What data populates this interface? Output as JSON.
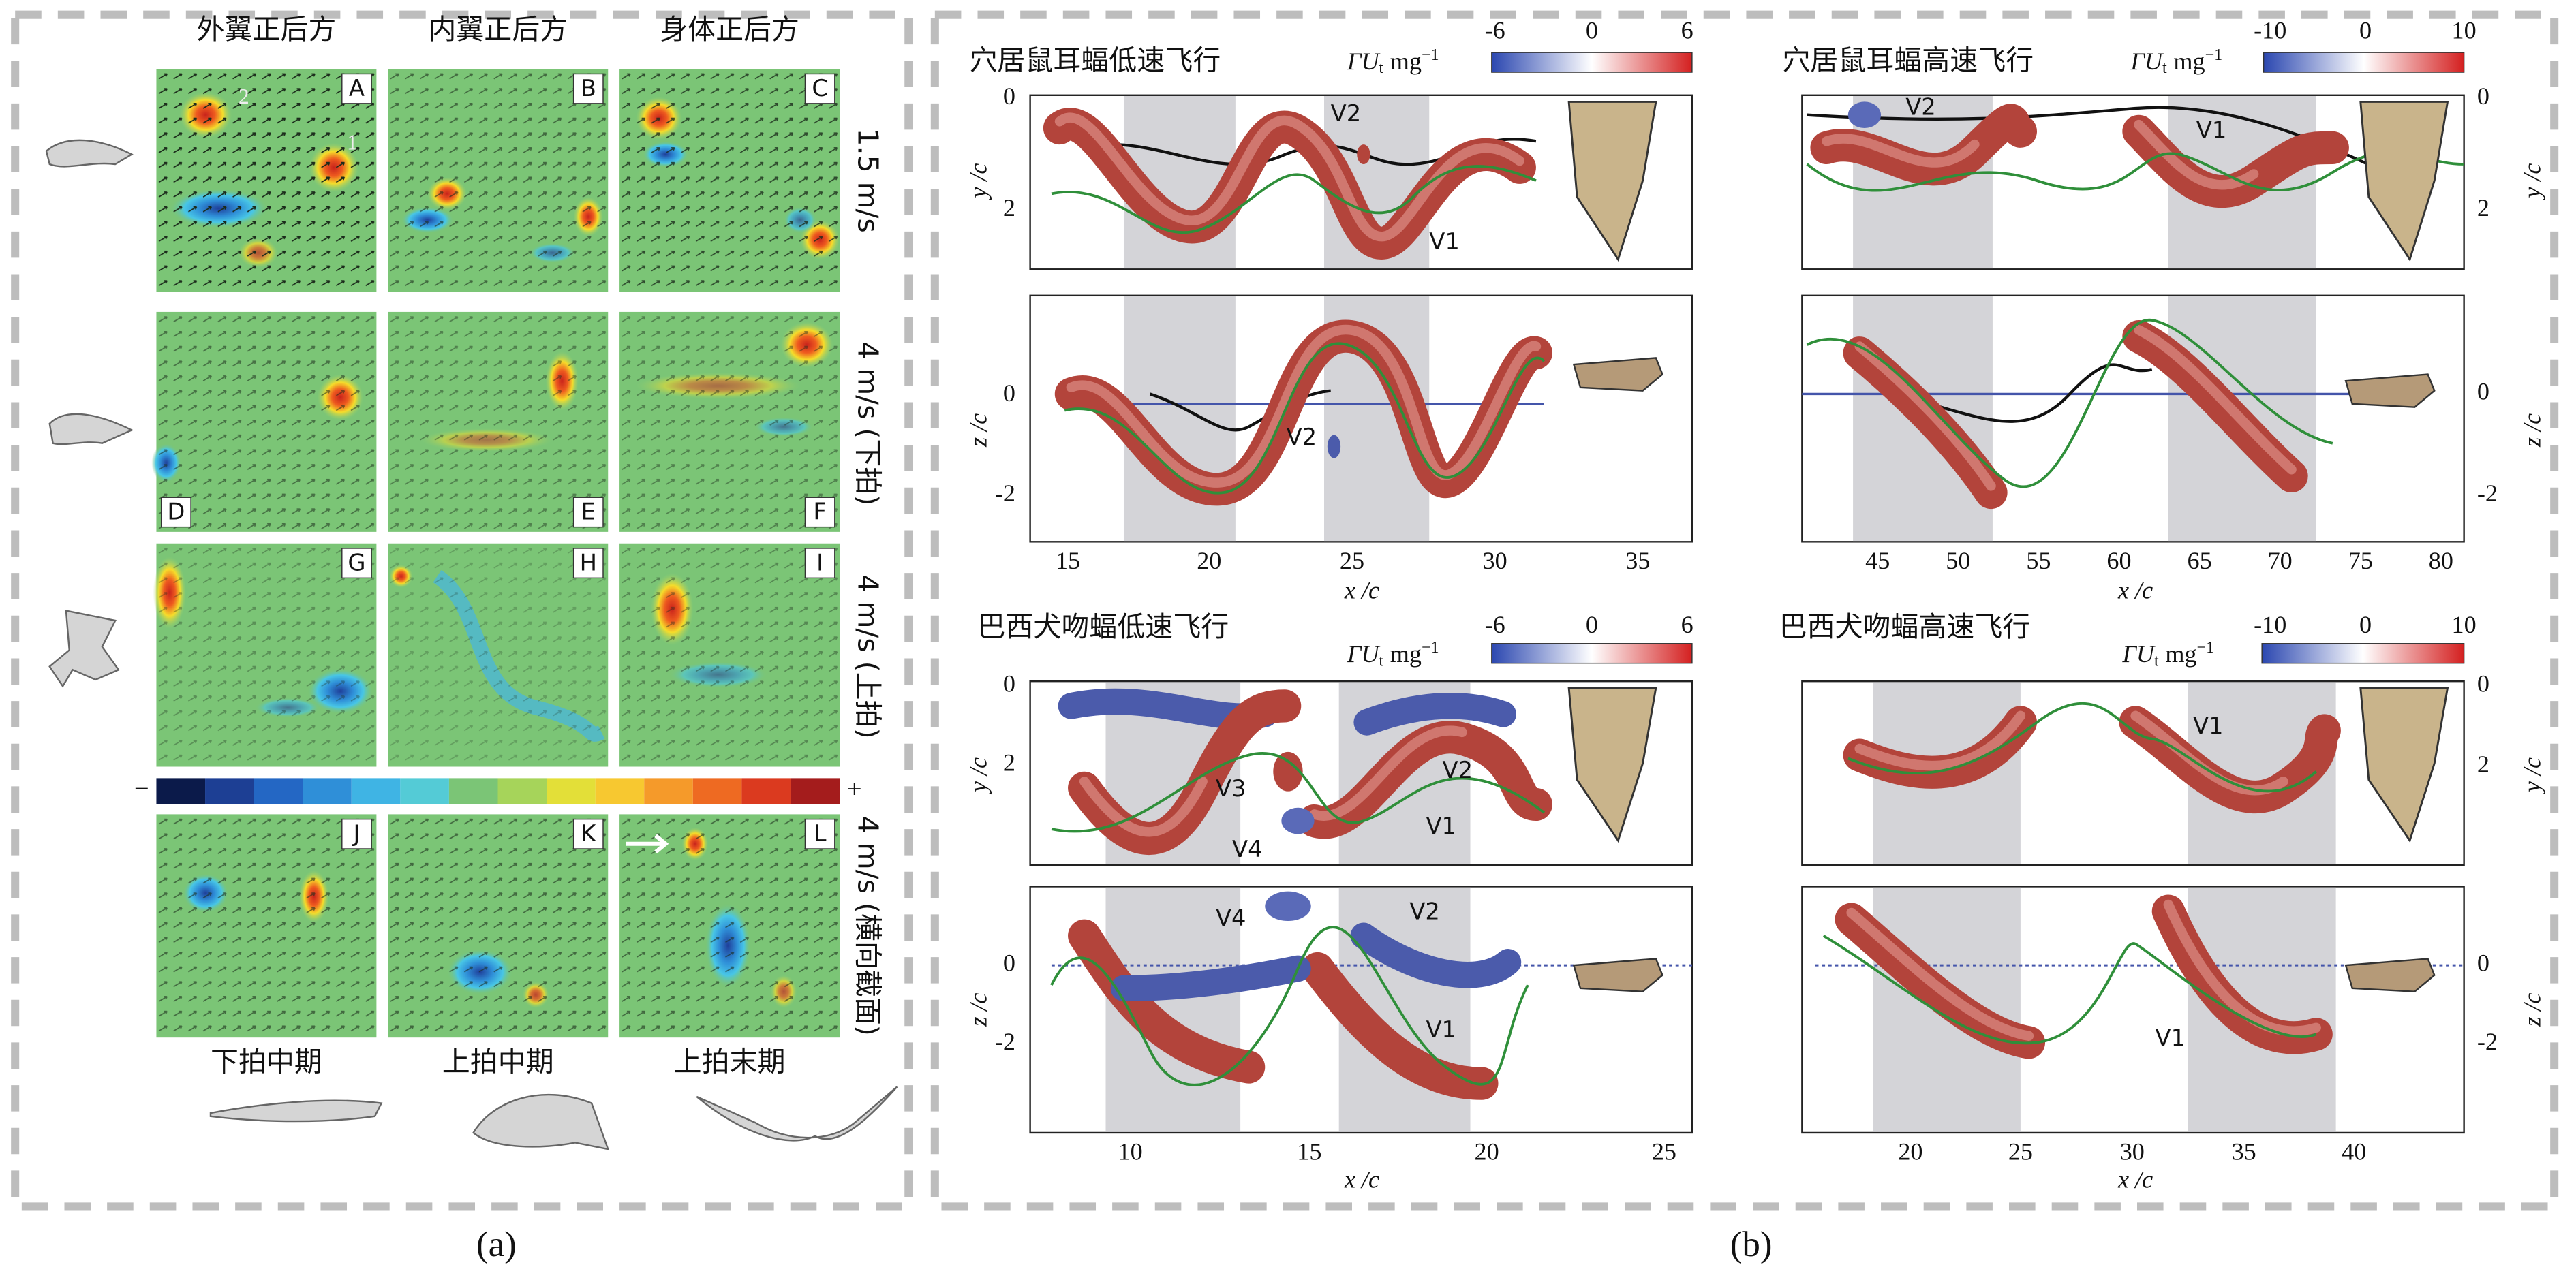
{
  "panel_a": {
    "column_titles": [
      "外翼正后方",
      "内翼正后方",
      "身体正后方"
    ],
    "row_labels": [
      "1.5 m/s",
      "4 m/s (下拍)",
      "4 m/s (上拍)",
      "4 m/s (横向截面)"
    ],
    "cell_letters": [
      "A",
      "B",
      "C",
      "D",
      "E",
      "F",
      "G",
      "H",
      "I",
      "J",
      "K",
      "L"
    ],
    "vortex_numbers": [
      2,
      1
    ],
    "colorbar": {
      "min": "−",
      "max": "+"
    },
    "phase_labels": [
      "下拍中期",
      "上拍中期",
      "上拍末期"
    ],
    "caption": "(a)"
  },
  "panel_b": {
    "plots": [
      {
        "title": "穴居鼠耳蝠低速飞行",
        "colorbar_label": {
          "symbol": "ΓU",
          "subscript": "t",
          "unit": "mg",
          "exponent": "−1"
        },
        "colorbar_ticks": [
          -6,
          0,
          6
        ],
        "top_axis": {
          "label": "y /c",
          "ticks": [
            0,
            2
          ]
        },
        "bottom_axis": {
          "label": "z /c",
          "ticks": [
            0,
            -2
          ]
        },
        "x_axis": {
          "label": "x /c",
          "ticks": [
            15,
            20,
            25,
            30,
            35
          ]
        },
        "vortex_labels": {
          "top": [
            "V2",
            "V1"
          ],
          "bottom": [
            "V2"
          ]
        }
      },
      {
        "title": "穴居鼠耳蝠高速飞行",
        "colorbar_label": {
          "symbol": "ΓU",
          "subscript": "t",
          "unit": "mg",
          "exponent": "−1"
        },
        "colorbar_ticks": [
          -10,
          0,
          10
        ],
        "top_axis": {
          "label": "y /c",
          "ticks": [
            0,
            2
          ]
        },
        "bottom_axis": {
          "label": "z /c",
          "ticks": [
            0,
            -2
          ]
        },
        "x_axis": {
          "label": "x /c",
          "ticks": [
            45,
            50,
            55,
            60,
            65,
            70,
            75,
            80
          ]
        },
        "vortex_labels": {
          "top": [
            "V2",
            "V1"
          ],
          "bottom": []
        }
      },
      {
        "title": "巴西犬吻蝠低速飞行",
        "colorbar_label": {
          "symbol": "ΓU",
          "subscript": "t",
          "unit": "mg",
          "exponent": "−1"
        },
        "colorbar_ticks": [
          -6,
          0,
          6
        ],
        "top_axis": {
          "label": "y /c",
          "ticks": [
            0,
            2
          ]
        },
        "bottom_axis": {
          "label": "z /c",
          "ticks": [
            0,
            -2
          ]
        },
        "x_axis": {
          "label": "x /c",
          "ticks": [
            10,
            15,
            20,
            25
          ]
        },
        "vortex_labels": {
          "top": [
            "V3",
            "V4",
            "V1",
            "V2"
          ],
          "bottom": [
            "V4",
            "V2",
            "V1"
          ]
        }
      },
      {
        "title": "巴西犬吻蝠高速飞行",
        "colorbar_label": {
          "symbol": "ΓU",
          "subscript": "t",
          "unit": "mg",
          "exponent": "−1"
        },
        "colorbar_ticks": [
          -10,
          0,
          10
        ],
        "top_axis": {
          "label": "y /c",
          "ticks": [
            0,
            2
          ]
        },
        "bottom_axis": {
          "label": "z /c",
          "ticks": [
            0,
            -2
          ]
        },
        "x_axis": {
          "label": "x /c",
          "ticks": [
            20,
            25,
            30,
            35,
            40
          ]
        },
        "vortex_labels": {
          "top": [
            "V1"
          ],
          "bottom": [
            "V1"
          ]
        }
      }
    ],
    "caption": "(b)"
  }
}
